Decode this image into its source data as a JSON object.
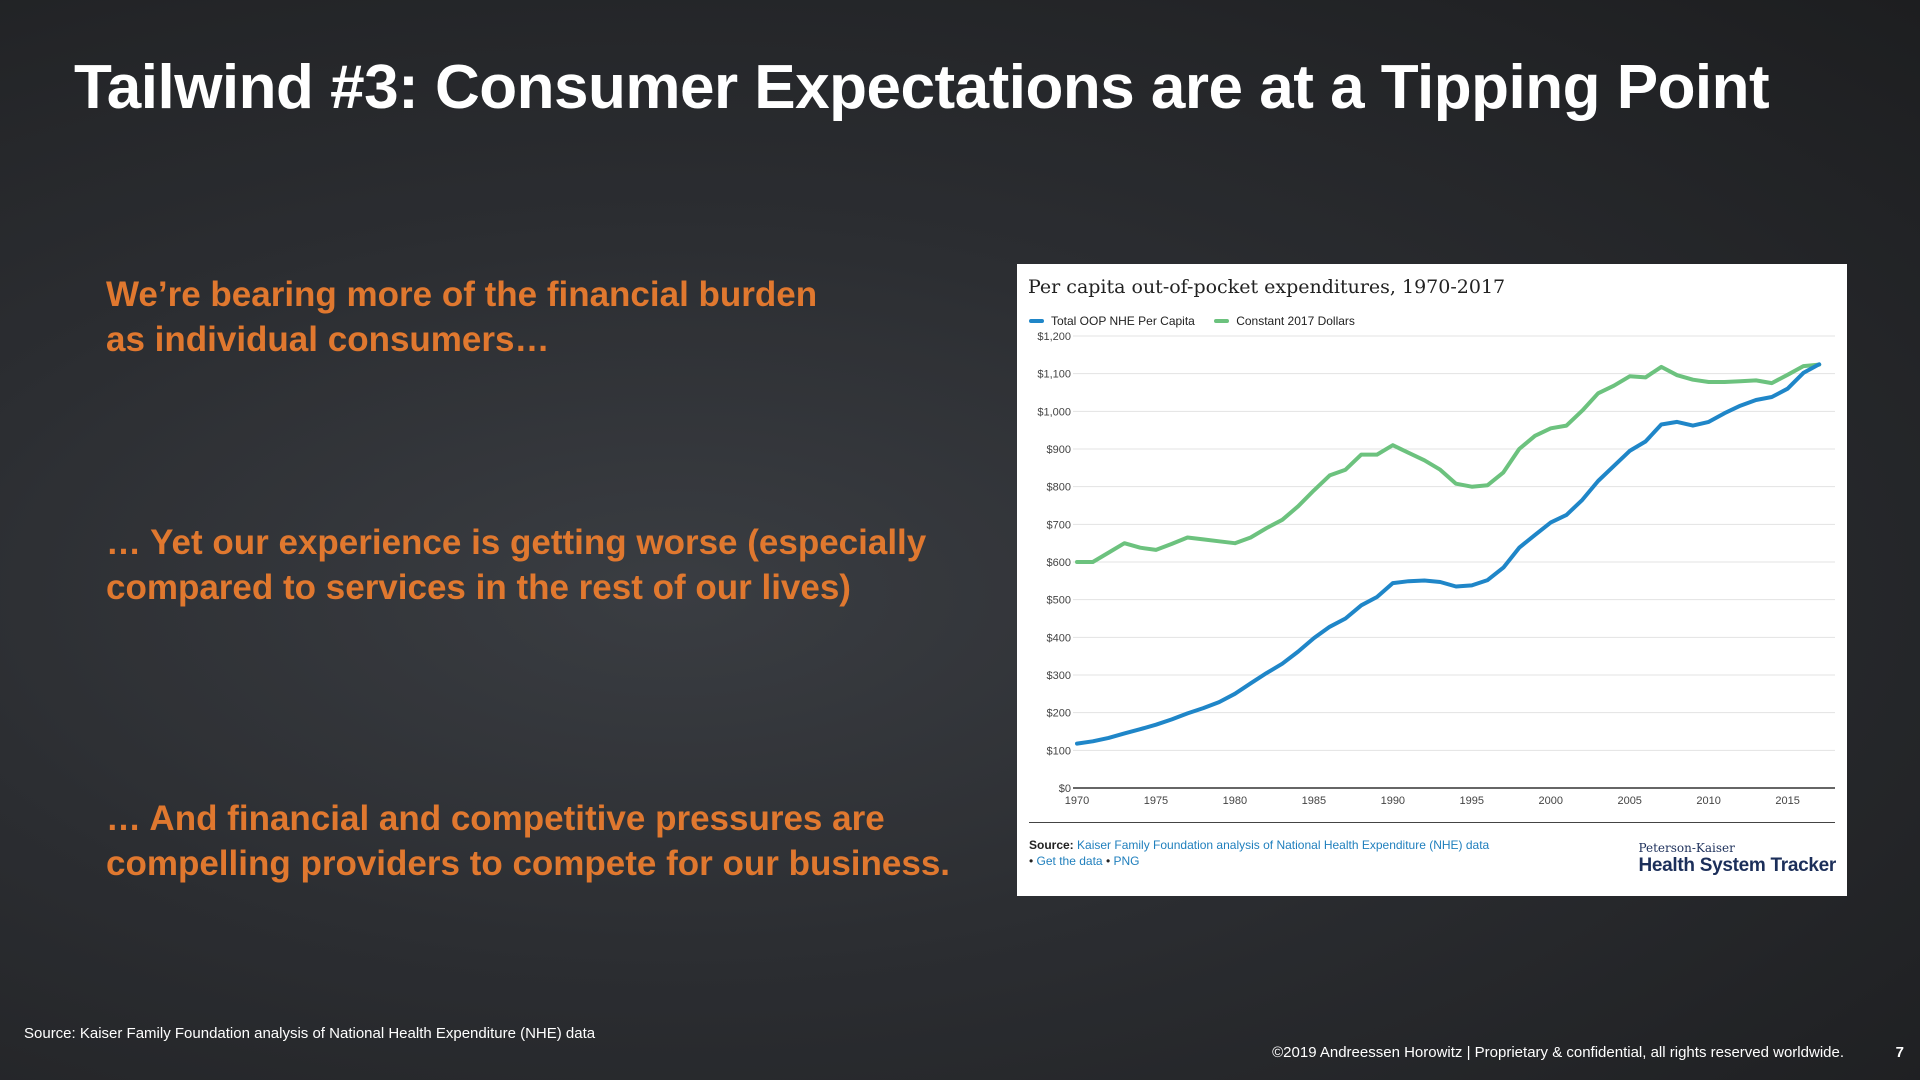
{
  "slide": {
    "title": "Tailwind #3: Consumer Expectations are at a Tipping Point",
    "points": [
      [
        "We’re bearing more of the financial burden",
        "as individual consumers…"
      ],
      [
        "… Yet our experience is getting worse (especially",
        "compared to services in the rest of our lives)"
      ],
      [
        "… And financial and competitive pressures are",
        "compelling providers to compete for our business."
      ]
    ],
    "source": "Source: Kaiser Family Foundation analysis of National Health Expenditure (NHE) data",
    "copyright": "©2019 Andreessen Horowitz | Proprietary & confidential, all rights reserved worldwide.",
    "page_number": "7"
  },
  "chart_footer": {
    "source_label": "Source:",
    "source_link": "Kaiser Family Foundation analysis of National Health Expenditure (NHE) data",
    "bullet": "•",
    "get_data": "Get the data",
    "png": "PNG",
    "brand_small": "Peterson-Kaiser",
    "brand_big": "Health System Tracker"
  },
  "colors": {
    "accent_orange": "#e0782f",
    "series_blue": "#1f86c8",
    "series_green": "#6cc27e"
  },
  "chart_data": {
    "type": "line",
    "title": "Per capita out-of-pocket expenditures, 1970-2017",
    "xlabel": "",
    "ylabel": "",
    "xlim": [
      1970,
      2018
    ],
    "ylim": [
      0,
      1200
    ],
    "x_ticks": [
      1970,
      1975,
      1980,
      1985,
      1990,
      1995,
      2000,
      2005,
      2010,
      2015
    ],
    "y_ticks": [
      0,
      100,
      200,
      300,
      400,
      500,
      600,
      700,
      800,
      900,
      1000,
      1100,
      1200
    ],
    "y_tick_labels": [
      "$0",
      "$100",
      "$200",
      "$300",
      "$400",
      "$500",
      "$600",
      "$700",
      "$800",
      "$900",
      "$1,000",
      "$1,100",
      "$1,200"
    ],
    "legend_position": "top-left",
    "x": [
      1970,
      1971,
      1972,
      1973,
      1974,
      1975,
      1976,
      1977,
      1978,
      1979,
      1980,
      1981,
      1982,
      1983,
      1984,
      1985,
      1986,
      1987,
      1988,
      1989,
      1990,
      1991,
      1992,
      1993,
      1994,
      1995,
      1996,
      1997,
      1998,
      1999,
      2000,
      2001,
      2002,
      2003,
      2004,
      2005,
      2006,
      2007,
      2008,
      2009,
      2010,
      2011,
      2012,
      2013,
      2014,
      2015,
      2016,
      2017
    ],
    "series": [
      {
        "name": "Total OOP NHE Per Capita",
        "color": "#1f86c8",
        "values": [
          118,
          124,
          133,
          145,
          156,
          168,
          182,
          198,
          212,
          228,
          250,
          278,
          305,
          330,
          362,
          398,
          428,
          450,
          485,
          507,
          544,
          549,
          551,
          547,
          535,
          538,
          552,
          585,
          638,
          672,
          705,
          725,
          765,
          815,
          855,
          895,
          920,
          965,
          972,
          962,
          972,
          995,
          1015,
          1030,
          1038,
          1060,
          1102,
          1125
        ]
      },
      {
        "name": "Constant 2017 Dollars",
        "color": "#6cc27e",
        "values": [
          600,
          600,
          625,
          650,
          638,
          632,
          648,
          665,
          660,
          655,
          650,
          665,
          690,
          712,
          748,
          790,
          830,
          845,
          885,
          885,
          910,
          890,
          870,
          845,
          808,
          800,
          804,
          838,
          900,
          935,
          955,
          962,
          1002,
          1048,
          1068,
          1093,
          1090,
          1118,
          1096,
          1084,
          1078,
          1078,
          1080,
          1082,
          1075,
          1097,
          1120,
          1124
        ]
      }
    ]
  }
}
